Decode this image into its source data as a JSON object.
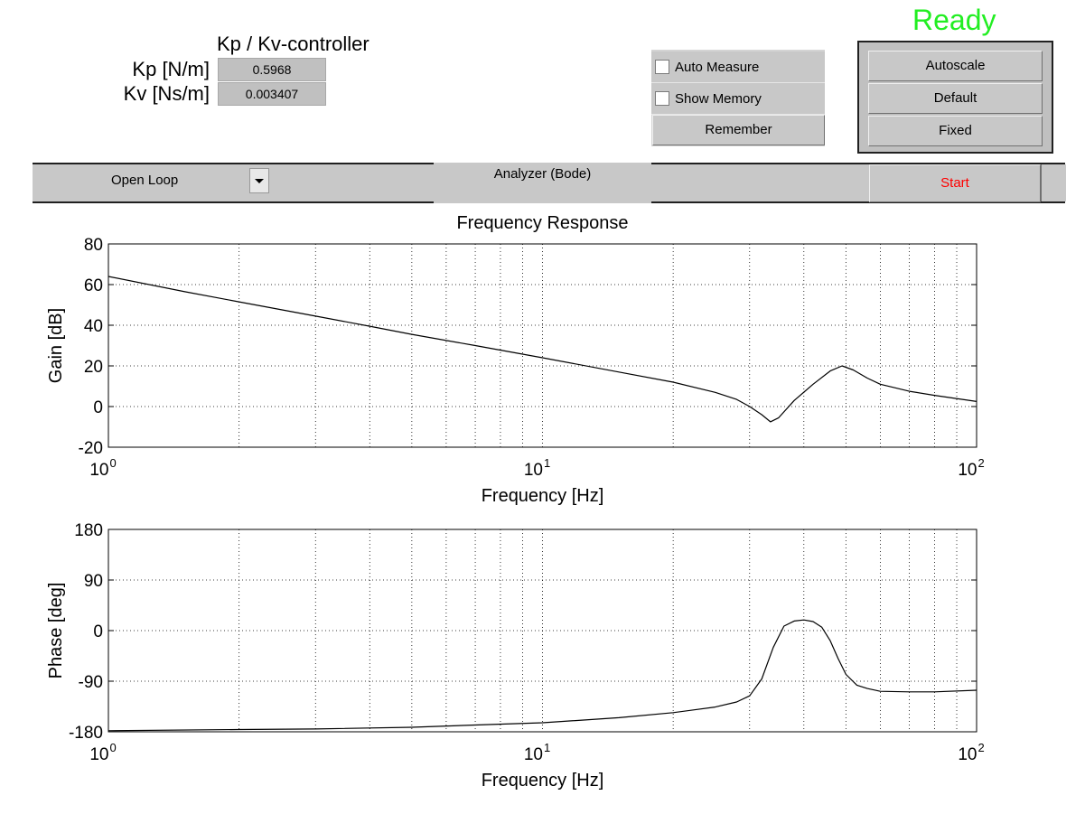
{
  "status": {
    "text": "Ready",
    "color": "#22ee22"
  },
  "controller": {
    "title": "Kp / Kv-controller",
    "kp_label": "Kp [N/m]",
    "kp_value": "0.5968",
    "kv_label": "Kv [Ns/m]",
    "kv_value": "0.003407"
  },
  "options": {
    "auto_measure": {
      "label": "Auto Measure",
      "checked": false
    },
    "show_memory": {
      "label": "Show Memory",
      "checked": false
    },
    "remember_label": "Remember"
  },
  "scale_buttons": [
    "Autoscale",
    "Default",
    "Fixed"
  ],
  "toolbar": {
    "mode_value": "Open Loop",
    "analyzer_label": "Analyzer (Bode)",
    "start_label": "Start",
    "start_color": "#ff0000"
  },
  "chart_data": [
    {
      "type": "line",
      "title": "Frequency Response",
      "xlabel": "Frequency [Hz]",
      "ylabel": "Gain [dB]",
      "xscale": "log",
      "xlim": [
        1,
        100
      ],
      "ylim": [
        -20,
        80
      ],
      "yticks": [
        "80",
        "60",
        "40",
        "20",
        "0",
        "-20"
      ],
      "xtick_bases": [
        "10",
        "10",
        "10"
      ],
      "xtick_exponents": [
        "0",
        "1",
        "2"
      ],
      "grid": true,
      "series": [
        {
          "x": [
            1,
            1.5,
            2,
            3,
            4,
            5,
            7,
            10,
            15,
            20,
            25,
            28,
            30,
            32,
            33.5,
            35,
            38,
            42,
            46,
            49,
            52,
            56,
            60,
            70,
            80,
            100
          ],
          "y": [
            64,
            56.5,
            51.5,
            44.5,
            39.5,
            35.5,
            30,
            24,
            17,
            12,
            7,
            3.5,
            0,
            -4,
            -7.5,
            -5.5,
            3,
            11,
            17.5,
            20,
            18,
            14,
            11,
            7.5,
            5.5,
            2.5
          ]
        }
      ]
    },
    {
      "type": "line",
      "title": "",
      "xlabel": "Frequency [Hz]",
      "ylabel": "Phase [deg]",
      "xscale": "log",
      "xlim": [
        1,
        100
      ],
      "ylim": [
        -180,
        180
      ],
      "yticks": [
        "180",
        "90",
        "0",
        "-90",
        "-180"
      ],
      "xtick_bases": [
        "10",
        "10",
        "10"
      ],
      "xtick_exponents": [
        "0",
        "1",
        "2"
      ],
      "grid": true,
      "series": [
        {
          "x": [
            1,
            2,
            3,
            5,
            7,
            10,
            15,
            20,
            25,
            28,
            30,
            32,
            34,
            36,
            38,
            40,
            42,
            44,
            46,
            48,
            50,
            53,
            56,
            60,
            70,
            80,
            100
          ],
          "y": [
            -178,
            -176,
            -175,
            -172,
            -168,
            -164,
            -155,
            -146,
            -136,
            -127,
            -116,
            -86,
            -30,
            8,
            17,
            19,
            16,
            6,
            -18,
            -50,
            -78,
            -97,
            -103,
            -108,
            -109,
            -109,
            -106
          ]
        }
      ]
    }
  ]
}
